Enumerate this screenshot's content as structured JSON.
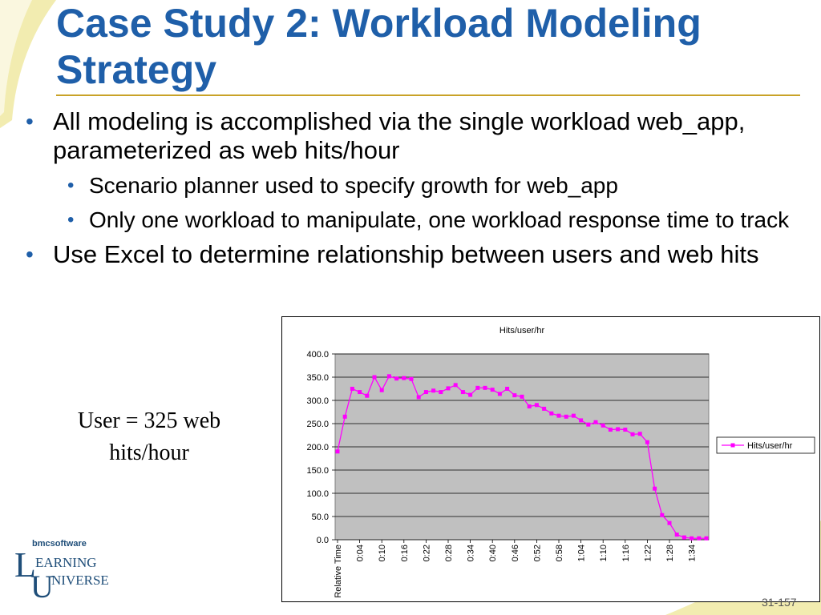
{
  "slide": {
    "title": "Case Study 2: Workload Modeling Strategy",
    "bullets": [
      {
        "text": "All modeling is accomplished via the single workload web_app, parameterized as web hits/hour"
      },
      {
        "text": "Scenario planner used to specify growth for web_app",
        "level": 2
      },
      {
        "text": "Only one workload to manipulate, one workload response time to track",
        "level": 2
      },
      {
        "text": "Use Excel to determine relationship between users and web hits"
      }
    ],
    "bullet_glyph": "•",
    "note": "User = 325 web hits/hour",
    "page_number": "31-157"
  },
  "logo": {
    "top": "bmcsoftware",
    "line1": "EARNING",
    "line2": "NIVERSE",
    "l": "L",
    "u": "U"
  },
  "colors": {
    "title": "#1f5fa9",
    "rule": "#c9a227",
    "swoosh": "#f2ecb0",
    "plot_bg": "#c0c0c0",
    "series": "#ff00ff"
  },
  "chart_data": {
    "type": "line",
    "title": "Hits/user/hr",
    "xlabel": "",
    "ylabel": "",
    "ylim": [
      0,
      400
    ],
    "yticks": [
      "0.0",
      "50.0",
      "100.0",
      "150.0",
      "200.0",
      "250.0",
      "300.0",
      "350.0",
      "400.0"
    ],
    "xticks": [
      "Relative Time",
      "0:04",
      "0:10",
      "0:16",
      "0:22",
      "0:28",
      "0:34",
      "0:40",
      "0:46",
      "0:52",
      "0:58",
      "1:04",
      "1:10",
      "1:16",
      "1:22",
      "1:28",
      "1:34"
    ],
    "grid": true,
    "legend": "right",
    "series": [
      {
        "name": "Hits/user/hr",
        "values": [
          190,
          265,
          325,
          318,
          310,
          350,
          322,
          352,
          347,
          348,
          346,
          307,
          318,
          321,
          318,
          326,
          333,
          318,
          312,
          327,
          327,
          323,
          314,
          325,
          311,
          308,
          287,
          290,
          282,
          272,
          267,
          265,
          267,
          257,
          248,
          253,
          246,
          237,
          238,
          237,
          227,
          228,
          210,
          110,
          53,
          36,
          11,
          5,
          3,
          3,
          3
        ]
      }
    ]
  }
}
